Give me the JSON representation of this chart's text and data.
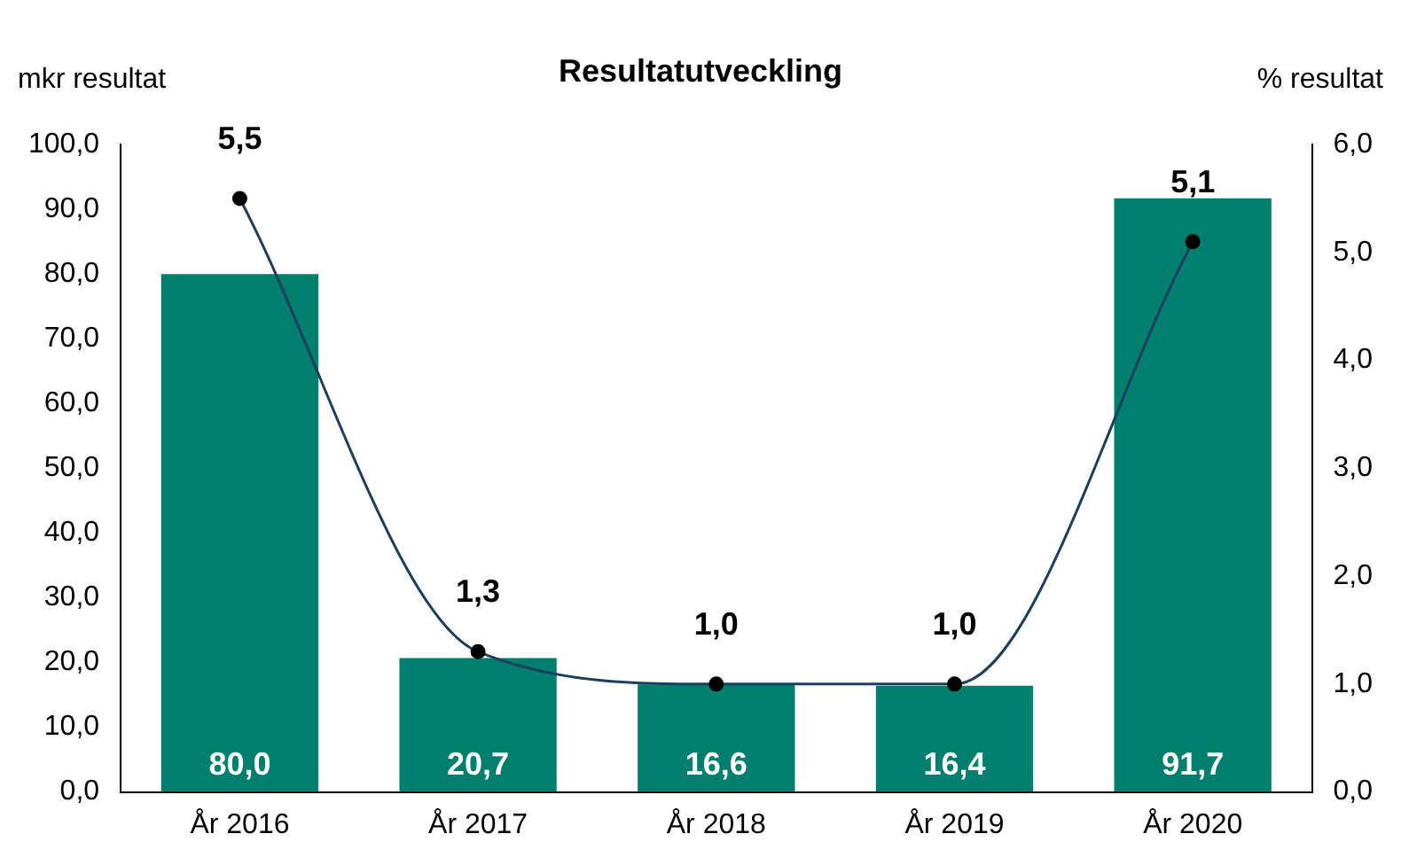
{
  "chart_data": {
    "type": "bar",
    "title": "Resultatutveckling",
    "ylabel": "mkr resultat",
    "y2label": "% resultat",
    "categories": [
      "År 2016",
      "År 2017",
      "År 2018",
      "År 2019",
      "År 2020"
    ],
    "series": [
      {
        "color": "#007f6e",
        "values": [
          80.0,
          20.7,
          16.6,
          16.4,
          91.7
        ],
        "value_labels": [
          "80,0",
          "20,7",
          "16,6",
          "16,4",
          "91,7"
        ]
      },
      {
        "type": "line",
        "axis": "y2",
        "color": "#1b3f5e",
        "values": [
          5.5,
          1.3,
          1.0,
          1.0,
          5.1
        ],
        "value_labels": [
          "5,5",
          "1,3",
          "1,0",
          "1,0",
          "5,1"
        ]
      }
    ],
    "ylim": [
      0,
      100
    ],
    "yticks": [
      {
        "value": 0,
        "label": "0,0"
      },
      {
        "value": 10,
        "label": "10,0"
      },
      {
        "value": 20,
        "label": "20,0"
      },
      {
        "value": 30,
        "label": "30,0"
      },
      {
        "value": 40,
        "label": "40,0"
      },
      {
        "value": 50,
        "label": "50,0"
      },
      {
        "value": 60,
        "label": "60,0"
      },
      {
        "value": 70,
        "label": "70,0"
      },
      {
        "value": 80,
        "label": "80,0"
      },
      {
        "value": 90,
        "label": "90,0"
      },
      {
        "value": 100,
        "label": "100,0"
      }
    ],
    "y2lim": [
      0,
      6
    ],
    "y2ticks": [
      {
        "value": 0,
        "label": "0,0"
      },
      {
        "value": 1,
        "label": "1,0"
      },
      {
        "value": 2,
        "label": "2,0"
      },
      {
        "value": 3,
        "label": "3,0"
      },
      {
        "value": 4,
        "label": "4,0"
      },
      {
        "value": 5,
        "label": "5,0"
      },
      {
        "value": 6,
        "label": "6,0"
      }
    ],
    "grid": false,
    "legend": false,
    "marker": "circle"
  }
}
